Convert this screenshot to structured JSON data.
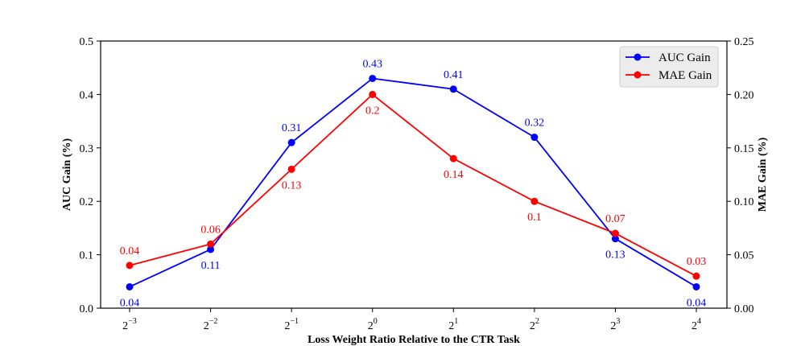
{
  "chart_data": {
    "type": "line",
    "xlabel": "Loss Weight Ratio Relative to the CTR Task",
    "ylabel_left": "AUC Gain (%)",
    "ylabel_right": "MAE Gain (%)",
    "x_ticks": [
      {
        "base": "2",
        "exp": "−3"
      },
      {
        "base": "2",
        "exp": "−2"
      },
      {
        "base": "2",
        "exp": "−1"
      },
      {
        "base": "2",
        "exp": "0"
      },
      {
        "base": "2",
        "exp": "1"
      },
      {
        "base": "2",
        "exp": "2"
      },
      {
        "base": "2",
        "exp": "3"
      },
      {
        "base": "2",
        "exp": "4"
      }
    ],
    "y_left": {
      "min": 0,
      "max": 0.5,
      "ticks": [
        0.0,
        0.1,
        0.2,
        0.3,
        0.4,
        0.5
      ],
      "tick_labels": [
        "0.0",
        "0.1",
        "0.2",
        "0.3",
        "0.4",
        "0.5"
      ]
    },
    "y_right": {
      "min": 0,
      "max": 0.25,
      "ticks": [
        0.0,
        0.05,
        0.1,
        0.15,
        0.2,
        0.25
      ],
      "tick_labels": [
        "0.00",
        "0.05",
        "0.10",
        "0.15",
        "0.20",
        "0.25"
      ]
    },
    "legend_position": "top-right",
    "series": [
      {
        "name": "AUC Gain",
        "axis": "left",
        "color": "#0000ff",
        "values": [
          0.04,
          0.11,
          0.31,
          0.43,
          0.41,
          0.32,
          0.13,
          0.04
        ],
        "labels": [
          "0.04",
          "0.11",
          "0.31",
          "0.43",
          "0.41",
          "0.32",
          "0.13",
          "0.04"
        ],
        "label_side": [
          "below",
          "below",
          "above",
          "above",
          "above",
          "above",
          "below",
          "below"
        ]
      },
      {
        "name": "MAE Gain",
        "axis": "right",
        "color": "#ff0000",
        "values": [
          0.04,
          0.06,
          0.13,
          0.2,
          0.14,
          0.1,
          0.07,
          0.03
        ],
        "labels": [
          "0.04",
          "0.06",
          "0.13",
          "0.2",
          "0.14",
          "0.1",
          "0.07",
          "0.03"
        ],
        "label_side": [
          "above",
          "above",
          "below",
          "below",
          "below",
          "below",
          "above",
          "above"
        ]
      }
    ]
  }
}
